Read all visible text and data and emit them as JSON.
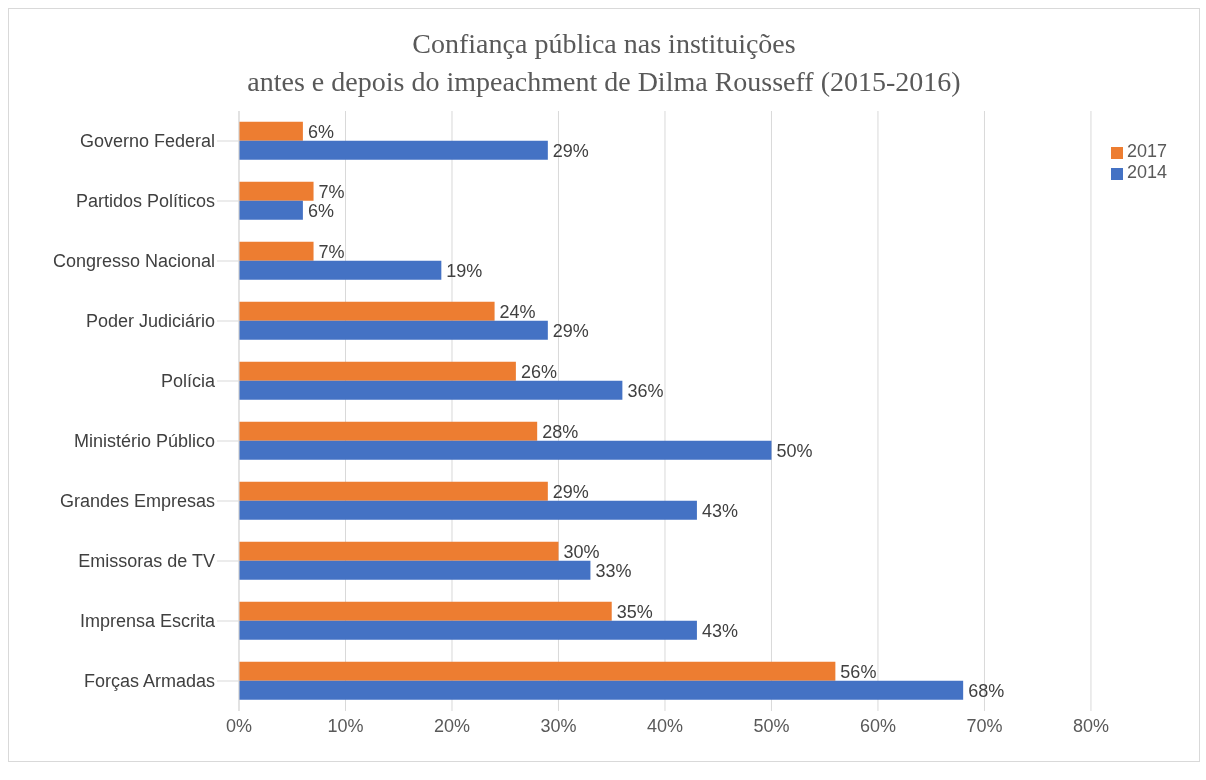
{
  "chart_data": {
    "type": "bar",
    "orientation": "horizontal",
    "title": "Confiança pública nas instituições\nantes e depois do impeachment de Dilma Rousseff (2015-2016)",
    "categories": [
      "Governo Federal",
      "Partidos Políticos",
      "Congresso Nacional",
      "Poder Judiciário",
      "Polícia",
      "Ministério Público",
      "Grandes Empresas",
      "Emissoras de TV",
      "Imprensa Escrita",
      "Forças Armadas"
    ],
    "series": [
      {
        "name": "2017",
        "color": "#ed7d31",
        "values": [
          6,
          7,
          7,
          24,
          26,
          28,
          29,
          30,
          35,
          56
        ],
        "value_labels": [
          "6%",
          "7%",
          "7%",
          "24%",
          "26%",
          "28%",
          "29%",
          "30%",
          "35%",
          "56%"
        ]
      },
      {
        "name": "2014",
        "color": "#4472c4",
        "values": [
          29,
          6,
          19,
          29,
          36,
          50,
          43,
          33,
          43,
          68
        ],
        "value_labels": [
          "29%",
          "6%",
          "19%",
          "29%",
          "36%",
          "50%",
          "43%",
          "33%",
          "43%",
          "68%"
        ]
      }
    ],
    "xlim": [
      0,
      80
    ],
    "xticks": [
      {
        "value": 0,
        "label": "0%"
      },
      {
        "value": 10,
        "label": "10%"
      },
      {
        "value": 20,
        "label": "20%"
      },
      {
        "value": 30,
        "label": "30%"
      },
      {
        "value": 40,
        "label": "40%"
      },
      {
        "value": 50,
        "label": "50%"
      },
      {
        "value": 60,
        "label": "60%"
      },
      {
        "value": 70,
        "label": "70%"
      },
      {
        "value": 80,
        "label": "80%"
      }
    ],
    "grid": "x",
    "legend": "right"
  }
}
